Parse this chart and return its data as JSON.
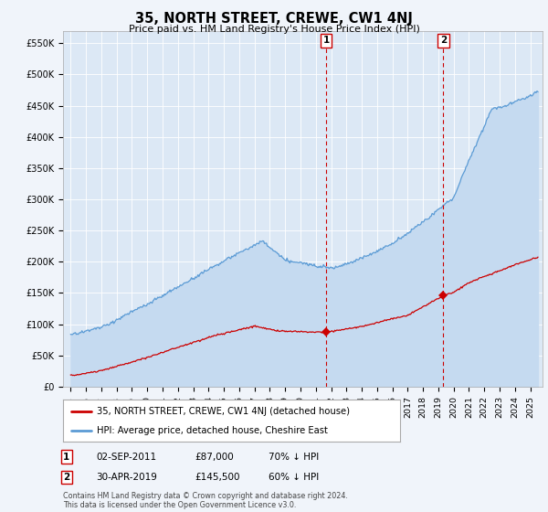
{
  "title": "35, NORTH STREET, CREWE, CW1 4NJ",
  "subtitle": "Price paid vs. HM Land Registry's House Price Index (HPI)",
  "ylim": [
    0,
    570000
  ],
  "yticks": [
    0,
    50000,
    100000,
    150000,
    200000,
    250000,
    300000,
    350000,
    400000,
    450000,
    500000,
    550000
  ],
  "ytick_labels": [
    "£0",
    "£50K",
    "£100K",
    "£150K",
    "£200K",
    "£250K",
    "£300K",
    "£350K",
    "£400K",
    "£450K",
    "£500K",
    "£550K"
  ],
  "hpi_color": "#5b9bd5",
  "hpi_fill_color": "#c5daf0",
  "price_color": "#cc0000",
  "legend_label_price": "35, NORTH STREET, CREWE, CW1 4NJ (detached house)",
  "legend_label_hpi": "HPI: Average price, detached house, Cheshire East",
  "event1_date": 2011.67,
  "event1_price": 87000,
  "event2_date": 2019.33,
  "event2_price": 145500,
  "footer": "Contains HM Land Registry data © Crown copyright and database right 2024.\nThis data is licensed under the Open Government Licence v3.0.",
  "background_color": "#f0f4fa",
  "plot_bg_color": "#dce8f5",
  "xlim_left": 1994.5,
  "xlim_right": 2025.8
}
